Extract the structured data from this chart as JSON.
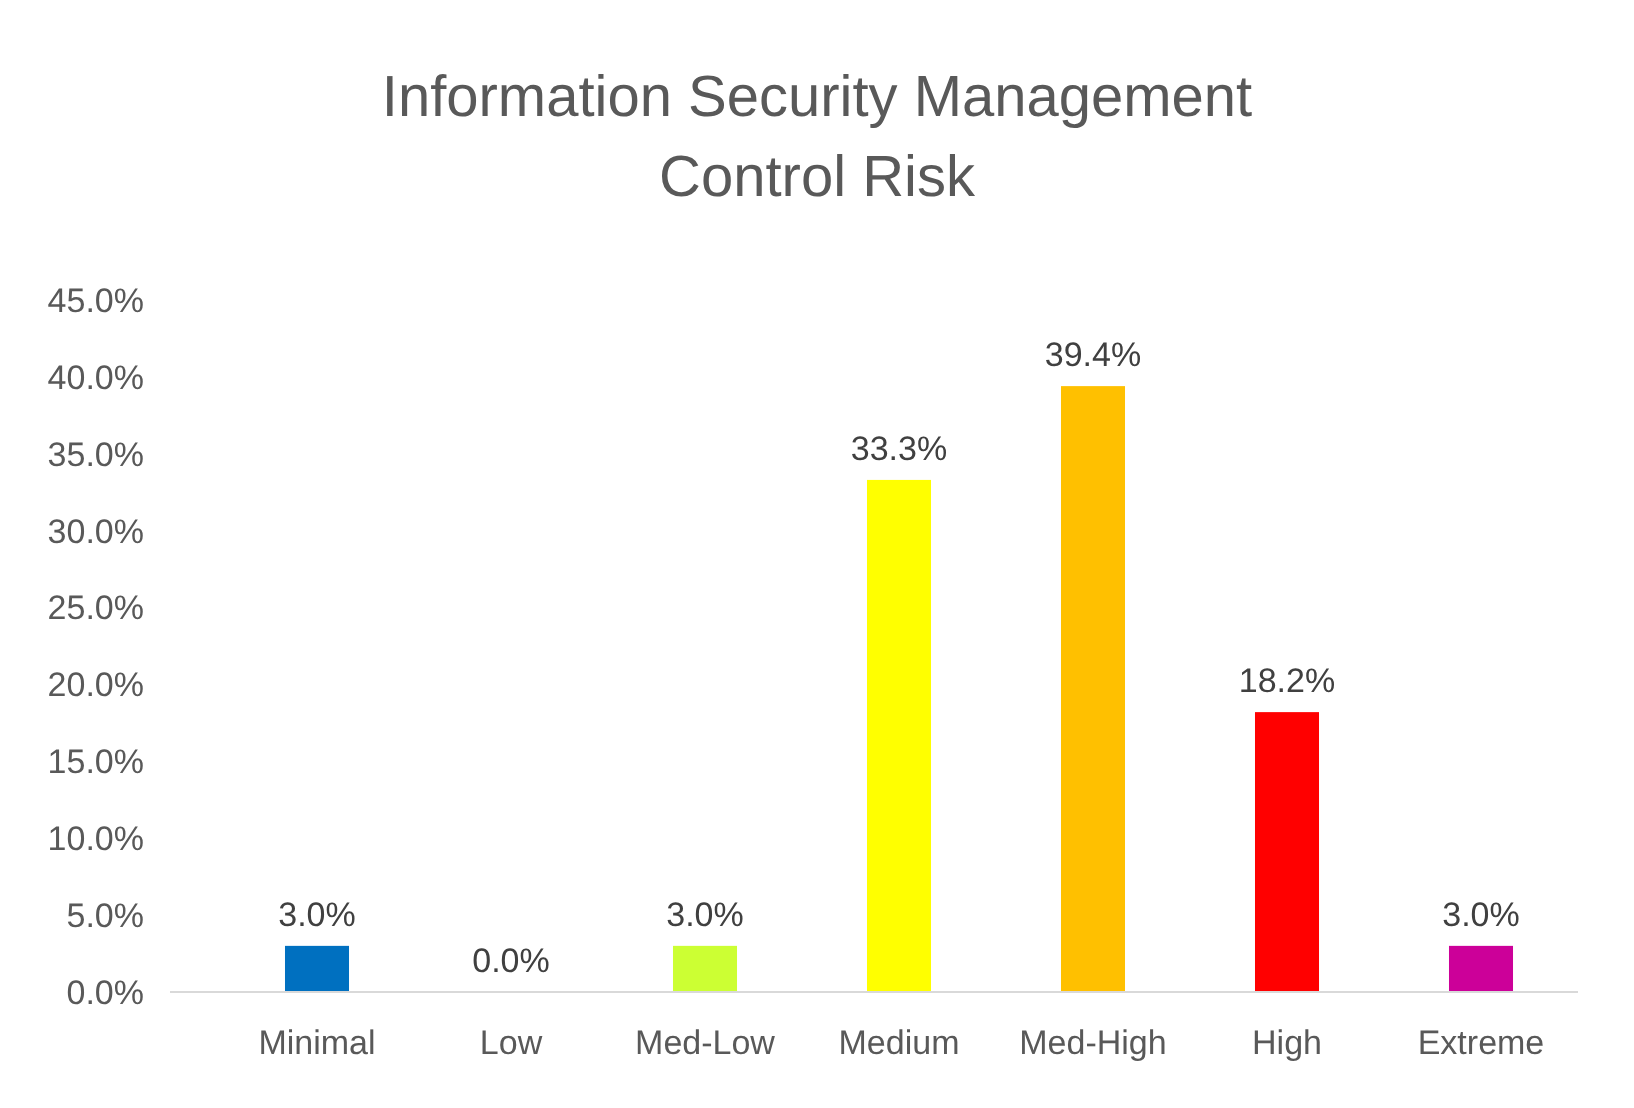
{
  "chart_data": {
    "type": "bar",
    "title": "Information Security Management Control Risk",
    "categories": [
      "Minimal",
      "Low",
      "Med-Low",
      "Medium",
      "Med-High",
      "High",
      "Extreme"
    ],
    "values": [
      3.0,
      0.0,
      3.0,
      33.3,
      39.4,
      18.2,
      3.0
    ],
    "colors": [
      "#0070c0",
      "#92d050",
      "#ccff33",
      "#ffff00",
      "#ffc000",
      "#ff0000",
      "#cc0099"
    ],
    "value_labels": [
      "3.0%",
      "0.0%",
      "3.0%",
      "33.3%",
      "39.4%",
      "18.2%",
      "3.0%"
    ],
    "ylim": [
      0,
      45
    ],
    "yticks": [
      {
        "value": 0,
        "label": "0.0%"
      },
      {
        "value": 5,
        "label": "5.0%"
      },
      {
        "value": 10,
        "label": "10.0%"
      },
      {
        "value": 15,
        "label": "15.0%"
      },
      {
        "value": 20,
        "label": "20.0%"
      },
      {
        "value": 25,
        "label": "25.0%"
      },
      {
        "value": 30,
        "label": "30.0%"
      },
      {
        "value": 35,
        "label": "35.0%"
      },
      {
        "value": 40,
        "label": "40.0%"
      },
      {
        "value": 45,
        "label": "45.0%"
      }
    ],
    "grid": false
  }
}
